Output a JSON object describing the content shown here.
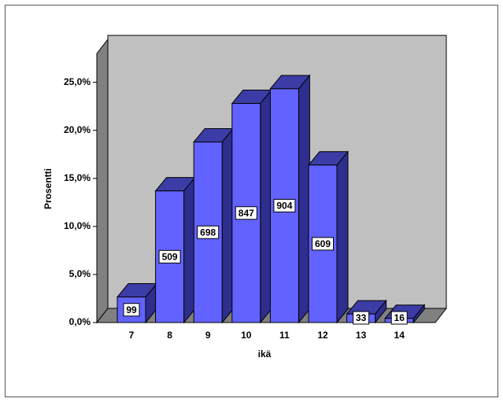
{
  "chart_data": {
    "type": "bar3d",
    "x_label": "ikä",
    "y_label": "Prosentti",
    "categories": [
      "7",
      "8",
      "9",
      "10",
      "11",
      "12",
      "13",
      "14"
    ],
    "values": [
      2.66,
      13.7,
      18.79,
      22.8,
      24.33,
      16.39,
      0.89,
      0.43
    ],
    "counts": [
      99,
      509,
      698,
      847,
      904,
      609,
      33,
      16
    ],
    "color": "#6262ff",
    "ylim": [
      0,
      28
    ],
    "yticks": [
      {
        "value": 0,
        "label": "0,0%"
      },
      {
        "value": 5,
        "label": "5,0%"
      },
      {
        "value": 10,
        "label": "10,0%"
      },
      {
        "value": 15,
        "label": "15,0%"
      },
      {
        "value": 20,
        "label": "20,0%"
      },
      {
        "value": 25,
        "label": "25,0%"
      }
    ]
  }
}
